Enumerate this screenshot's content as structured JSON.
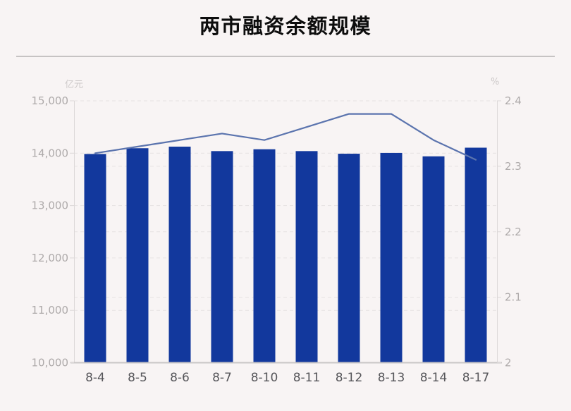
{
  "page": {
    "title": "两市融资余额规模"
  },
  "colors": {
    "background": "#f8f4f4",
    "bar": "#12389d",
    "line": "#5b74ae",
    "gridline": "#e6e2e2",
    "axis_line": "#dcd8d8",
    "baseline": "#c9c6c6",
    "y_tick_text": "#aeaaaa",
    "x_tick_text": "#56565a",
    "unit_text": "#cdc9c9",
    "title_text": "#0d0d0d",
    "divider": "#c6c3c3"
  },
  "chart_data": {
    "type": "bar",
    "title": "两市融资余额规模",
    "legend": "none",
    "grid": "horizontal-dashed",
    "categories": [
      "8-4",
      "8-5",
      "8-6",
      "8-7",
      "8-10",
      "8-11",
      "8-12",
      "8-13",
      "8-14",
      "8-17"
    ],
    "series": [
      {
        "id": "balance-bars",
        "type": "bar",
        "axis": "left",
        "values": [
          13985,
          14095,
          14125,
          14040,
          14075,
          14040,
          13990,
          14005,
          13940,
          14105
        ]
      },
      {
        "id": "ratio-line",
        "type": "line",
        "axis": "right",
        "values": [
          2.32,
          2.33,
          2.34,
          2.35,
          2.34,
          2.36,
          2.38,
          2.38,
          2.34,
          2.31
        ]
      }
    ],
    "left_axis": {
      "unit": "亿元",
      "min": 10000,
      "max": 15000,
      "ticks": [
        "15,000",
        "14,000",
        "13,000",
        "12,000",
        "11,000",
        "10,000"
      ]
    },
    "right_axis": {
      "unit": "%",
      "min": 2,
      "max": 2.4,
      "ticks": [
        "2.4",
        "2.3",
        "2.2",
        "2.1",
        "2"
      ]
    }
  }
}
